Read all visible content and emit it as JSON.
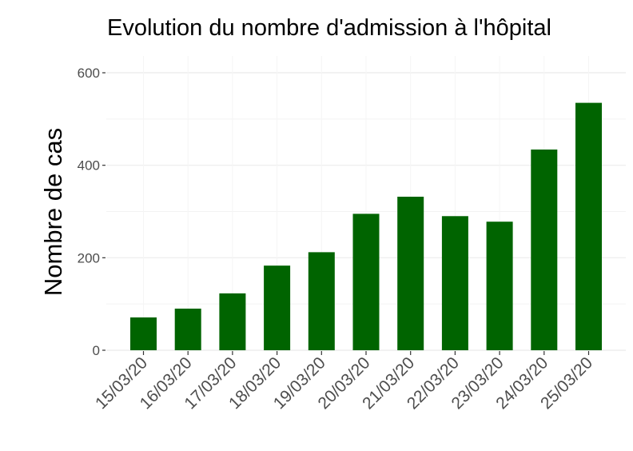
{
  "chart_data": {
    "type": "bar",
    "title": "Evolution du nombre d'admission à l'hôpital",
    "xlabel": "",
    "ylabel": "Nombre de cas",
    "categories": [
      "15/03/20",
      "16/03/20",
      "17/03/20",
      "18/03/20",
      "19/03/20",
      "20/03/20",
      "21/03/20",
      "22/03/20",
      "23/03/20",
      "24/03/20",
      "25/03/20"
    ],
    "values": [
      71,
      90,
      123,
      183,
      212,
      295,
      332,
      290,
      278,
      434,
      535
    ],
    "ylim": [
      0,
      600
    ],
    "yticks": [
      0,
      200,
      400,
      600
    ],
    "ytick_labels": [
      "0",
      "200",
      "400",
      "600"
    ],
    "grid": true,
    "bar_color": "#006400",
    "grid_color": "#ebebeb",
    "legend": "none"
  }
}
